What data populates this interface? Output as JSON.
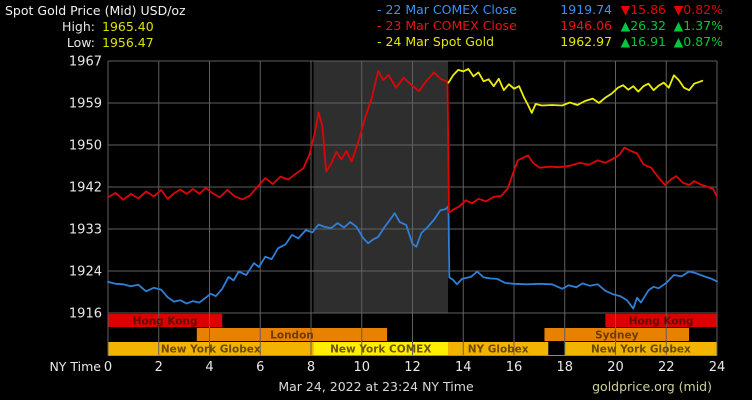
{
  "header": {
    "title": "Spot Gold Price (Mid) USD/oz",
    "high_label": "High:",
    "high_value": "1965.40",
    "low_label": "Low:",
    "low_value": "1956.47",
    "legend": [
      {
        "label": "- 22 Mar COMEX Close",
        "value": "1919.74",
        "change": "▼15.86",
        "change_pct": "▼0.82%",
        "label_color": "#3b92ee",
        "change_color": "#e60000"
      },
      {
        "label": "- 23 Mar COMEX Close",
        "value": "1946.06",
        "change": "▲26.32",
        "change_pct": "▲1.37%",
        "label_color": "#e81414",
        "change_color": "#00c83c"
      },
      {
        "label": "- 24 Mar Spot Gold",
        "value": "1962.97",
        "change": "▲16.91",
        "change_pct": "▲0.87%",
        "label_color": "#e6e600",
        "change_color": "#00c83c"
      }
    ]
  },
  "footer": {
    "timestamp": "Mar 24, 2022 at 23:24 NY Time",
    "source": "goldprice.org (mid)"
  },
  "colors": {
    "background": "#000000",
    "grid": "#616161",
    "axis_line": "#8a8a8a",
    "band": "#2e2e2e",
    "axis_text": "#e8e8e8",
    "up": "#00c83c",
    "down": "#e60000"
  },
  "chart_data": {
    "type": "line",
    "title": "Spot Gold Price (Mid) USD/oz",
    "x_label": "NY Time",
    "xlim": [
      0,
      24
    ],
    "x_ticks": [
      0,
      2,
      4,
      6,
      8,
      10,
      12,
      14,
      16,
      18,
      20,
      22,
      24
    ],
    "ylim": [
      1916,
      1967
    ],
    "y_ticks": [
      {
        "value": 1967,
        "label": "1967"
      },
      {
        "value": 1958.5,
        "label": "1959"
      },
      {
        "value": 1950,
        "label": "1950"
      },
      {
        "value": 1941.5,
        "label": "1942"
      },
      {
        "value": 1933,
        "label": "1933"
      },
      {
        "value": 1924.5,
        "label": "1924"
      },
      {
        "value": 1916,
        "label": "1916"
      }
    ],
    "grid": true,
    "legend_position": "top-right",
    "shaded_region": {
      "x0": 8.1,
      "x1": 13.4,
      "color": "#2e2e2e",
      "meaning": "New York COMEX session"
    },
    "series": [
      {
        "name": "22 Mar COMEX Close",
        "color": "#2e7fd6",
        "points": [
          [
            0,
            1922.3
          ],
          [
            0.3,
            1921.9
          ],
          [
            0.6,
            1921.8
          ],
          [
            0.9,
            1921.4
          ],
          [
            1.2,
            1921.7
          ],
          [
            1.5,
            1920.4
          ],
          [
            1.8,
            1921.1
          ],
          [
            2.1,
            1920.7
          ],
          [
            2.35,
            1919.2
          ],
          [
            2.6,
            1918.3
          ],
          [
            2.85,
            1918.6
          ],
          [
            3.1,
            1917.9
          ],
          [
            3.35,
            1918.4
          ],
          [
            3.6,
            1918.1
          ],
          [
            3.85,
            1919.1
          ],
          [
            4.05,
            1919.9
          ],
          [
            4.25,
            1919.4
          ],
          [
            4.5,
            1920.9
          ],
          [
            4.75,
            1923.3
          ],
          [
            4.95,
            1922.6
          ],
          [
            5.15,
            1924.4
          ],
          [
            5.45,
            1923.7
          ],
          [
            5.75,
            1926.1
          ],
          [
            5.95,
            1925.3
          ],
          [
            6.2,
            1927.4
          ],
          [
            6.45,
            1926.9
          ],
          [
            6.7,
            1929.1
          ],
          [
            7.0,
            1929.9
          ],
          [
            7.25,
            1931.8
          ],
          [
            7.5,
            1931.1
          ],
          [
            7.8,
            1932.8
          ],
          [
            8.05,
            1932.3
          ],
          [
            8.3,
            1933.9
          ],
          [
            8.55,
            1933.4
          ],
          [
            8.8,
            1933.2
          ],
          [
            9.05,
            1934.2
          ],
          [
            9.3,
            1933.3
          ],
          [
            9.55,
            1934.4
          ],
          [
            9.8,
            1933.4
          ],
          [
            10.05,
            1931.2
          ],
          [
            10.25,
            1930.1
          ],
          [
            10.45,
            1930.9
          ],
          [
            10.65,
            1931.4
          ],
          [
            10.9,
            1933.4
          ],
          [
            11.1,
            1934.8
          ],
          [
            11.3,
            1936.2
          ],
          [
            11.5,
            1934.4
          ],
          [
            11.75,
            1933.8
          ],
          [
            12.0,
            1930.0
          ],
          [
            12.15,
            1929.4
          ],
          [
            12.35,
            1932.2
          ],
          [
            12.6,
            1933.4
          ],
          [
            12.85,
            1934.9
          ],
          [
            13.1,
            1936.8
          ],
          [
            13.3,
            1937.0
          ],
          [
            13.42,
            1937.6
          ],
          [
            13.45,
            1923.2
          ],
          [
            13.6,
            1922.7
          ],
          [
            13.75,
            1921.8
          ],
          [
            13.95,
            1922.9
          ],
          [
            14.3,
            1923.3
          ],
          [
            14.55,
            1924.4
          ],
          [
            14.8,
            1923.2
          ],
          [
            15.05,
            1923.0
          ],
          [
            15.35,
            1922.9
          ],
          [
            15.65,
            1922.1
          ],
          [
            16.0,
            1921.9
          ],
          [
            16.5,
            1921.8
          ],
          [
            17.0,
            1921.9
          ],
          [
            17.5,
            1921.8
          ],
          [
            17.9,
            1920.9
          ],
          [
            18.15,
            1921.6
          ],
          [
            18.45,
            1921.2
          ],
          [
            18.7,
            1922.0
          ],
          [
            19.0,
            1921.5
          ],
          [
            19.3,
            1921.8
          ],
          [
            19.6,
            1920.5
          ],
          [
            19.9,
            1919.8
          ],
          [
            20.2,
            1919.4
          ],
          [
            20.45,
            1918.6
          ],
          [
            20.7,
            1916.9
          ],
          [
            20.85,
            1919.1
          ],
          [
            21.0,
            1918.1
          ],
          [
            21.3,
            1920.6
          ],
          [
            21.5,
            1921.3
          ],
          [
            21.7,
            1921.0
          ],
          [
            22.0,
            1922.1
          ],
          [
            22.3,
            1923.7
          ],
          [
            22.6,
            1923.4
          ],
          [
            22.9,
            1924.4
          ],
          [
            23.15,
            1924.1
          ],
          [
            23.5,
            1923.4
          ],
          [
            23.8,
            1922.9
          ],
          [
            24,
            1922.4
          ]
        ]
      },
      {
        "name": "23 Mar COMEX Close",
        "color": "#dc0606",
        "points": [
          [
            0,
            1939.4
          ],
          [
            0.3,
            1940.3
          ],
          [
            0.6,
            1938.9
          ],
          [
            0.9,
            1940.1
          ],
          [
            1.2,
            1939.2
          ],
          [
            1.5,
            1940.6
          ],
          [
            1.8,
            1939.6
          ],
          [
            2.1,
            1940.9
          ],
          [
            2.35,
            1939.1
          ],
          [
            2.6,
            1940.2
          ],
          [
            2.85,
            1941.0
          ],
          [
            3.1,
            1940.1
          ],
          [
            3.35,
            1941.1
          ],
          [
            3.6,
            1940.1
          ],
          [
            3.85,
            1941.3
          ],
          [
            4.1,
            1940.3
          ],
          [
            4.4,
            1939.4
          ],
          [
            4.7,
            1940.9
          ],
          [
            5.0,
            1939.6
          ],
          [
            5.3,
            1939.0
          ],
          [
            5.6,
            1939.8
          ],
          [
            5.9,
            1941.6
          ],
          [
            6.2,
            1943.3
          ],
          [
            6.5,
            1942.1
          ],
          [
            6.8,
            1943.6
          ],
          [
            7.1,
            1943.0
          ],
          [
            7.4,
            1944.2
          ],
          [
            7.7,
            1945.3
          ],
          [
            7.95,
            1948.2
          ],
          [
            8.15,
            1952.5
          ],
          [
            8.3,
            1956.6
          ],
          [
            8.45,
            1953.8
          ],
          [
            8.6,
            1944.6
          ],
          [
            8.8,
            1946.3
          ],
          [
            9.0,
            1948.6
          ],
          [
            9.2,
            1947.1
          ],
          [
            9.4,
            1948.8
          ],
          [
            9.6,
            1946.6
          ],
          [
            9.9,
            1951.2
          ],
          [
            10.15,
            1955.8
          ],
          [
            10.4,
            1959.6
          ],
          [
            10.65,
            1965.0
          ],
          [
            10.85,
            1963.1
          ],
          [
            11.05,
            1964.2
          ],
          [
            11.35,
            1961.6
          ],
          [
            11.65,
            1963.6
          ],
          [
            11.95,
            1962.2
          ],
          [
            12.25,
            1960.9
          ],
          [
            12.55,
            1963.0
          ],
          [
            12.85,
            1964.7
          ],
          [
            13.1,
            1963.4
          ],
          [
            13.38,
            1962.8
          ],
          [
            13.44,
            1936.3
          ],
          [
            13.6,
            1936.9
          ],
          [
            13.85,
            1937.6
          ],
          [
            14.1,
            1938.8
          ],
          [
            14.35,
            1938.2
          ],
          [
            14.6,
            1939.1
          ],
          [
            14.9,
            1938.6
          ],
          [
            15.2,
            1939.5
          ],
          [
            15.5,
            1939.7
          ],
          [
            15.75,
            1941.2
          ],
          [
            15.95,
            1944.1
          ],
          [
            16.15,
            1946.9
          ],
          [
            16.35,
            1947.4
          ],
          [
            16.55,
            1947.9
          ],
          [
            16.75,
            1946.4
          ],
          [
            17.0,
            1945.4
          ],
          [
            17.4,
            1945.6
          ],
          [
            17.8,
            1945.5
          ],
          [
            18.2,
            1945.8
          ],
          [
            18.6,
            1946.4
          ],
          [
            18.95,
            1946.0
          ],
          [
            19.3,
            1946.9
          ],
          [
            19.6,
            1946.4
          ],
          [
            19.9,
            1947.2
          ],
          [
            20.15,
            1948.0
          ],
          [
            20.35,
            1949.5
          ],
          [
            20.6,
            1948.8
          ],
          [
            20.85,
            1948.3
          ],
          [
            21.1,
            1946.1
          ],
          [
            21.4,
            1945.4
          ],
          [
            21.7,
            1943.4
          ],
          [
            21.95,
            1941.9
          ],
          [
            22.2,
            1943.1
          ],
          [
            22.4,
            1943.7
          ],
          [
            22.65,
            1942.4
          ],
          [
            22.9,
            1941.9
          ],
          [
            23.1,
            1942.7
          ],
          [
            23.35,
            1942.0
          ],
          [
            23.6,
            1941.6
          ],
          [
            23.85,
            1941.1
          ],
          [
            24,
            1939.5
          ]
        ]
      },
      {
        "name": "24 Mar Spot Gold",
        "color": "#eeee00",
        "points": [
          [
            13.42,
            1962.6
          ],
          [
            13.6,
            1964.1
          ],
          [
            13.8,
            1965.2
          ],
          [
            14.0,
            1964.9
          ],
          [
            14.2,
            1965.4
          ],
          [
            14.4,
            1963.9
          ],
          [
            14.6,
            1964.7
          ],
          [
            14.8,
            1962.9
          ],
          [
            15.0,
            1963.3
          ],
          [
            15.2,
            1961.9
          ],
          [
            15.4,
            1963.4
          ],
          [
            15.6,
            1961.1
          ],
          [
            15.8,
            1962.3
          ],
          [
            16.0,
            1961.4
          ],
          [
            16.2,
            1961.9
          ],
          [
            16.4,
            1959.6
          ],
          [
            16.55,
            1958.1
          ],
          [
            16.7,
            1956.5
          ],
          [
            16.85,
            1958.3
          ],
          [
            17.1,
            1958.0
          ],
          [
            17.5,
            1958.1
          ],
          [
            17.9,
            1958.0
          ],
          [
            18.2,
            1958.6
          ],
          [
            18.5,
            1958.1
          ],
          [
            18.8,
            1958.9
          ],
          [
            19.1,
            1959.4
          ],
          [
            19.35,
            1958.5
          ],
          [
            19.6,
            1959.6
          ],
          [
            19.85,
            1960.4
          ],
          [
            20.1,
            1961.6
          ],
          [
            20.3,
            1962.1
          ],
          [
            20.5,
            1961.2
          ],
          [
            20.7,
            1961.9
          ],
          [
            20.9,
            1960.8
          ],
          [
            21.1,
            1961.9
          ],
          [
            21.3,
            1962.4
          ],
          [
            21.5,
            1961.1
          ],
          [
            21.7,
            1962.0
          ],
          [
            21.9,
            1962.6
          ],
          [
            22.1,
            1961.6
          ],
          [
            22.3,
            1964.1
          ],
          [
            22.5,
            1963.1
          ],
          [
            22.7,
            1961.6
          ],
          [
            22.9,
            1961.1
          ],
          [
            23.1,
            1962.4
          ],
          [
            23.42,
            1963.0
          ]
        ]
      }
    ],
    "sessions": [
      {
        "row": 0,
        "label": "Hong Kong",
        "start": 0,
        "end": 4.5,
        "color": "#dc0000",
        "label_color": "#5f1000"
      },
      {
        "row": 0,
        "label": "Hong Kong",
        "start": 19.6,
        "end": 24,
        "color": "#dc0000",
        "label_color": "#5f1000"
      },
      {
        "row": 1,
        "label": "London",
        "start": 3.5,
        "end": 11.0,
        "color": "#e88000",
        "label_color": "#6e3c00"
      },
      {
        "row": 1,
        "label": "Sydney",
        "start": 17.2,
        "end": 22.9,
        "color": "#e88000",
        "label_color": "#6e3c00"
      },
      {
        "row": 2,
        "label": "New York Globex",
        "start": 0,
        "end": 8.1,
        "color": "#f2b400",
        "label_color": "#6e4a00"
      },
      {
        "row": 2,
        "label": "New York COMEX",
        "start": 8.1,
        "end": 13.4,
        "color": "#ffee00",
        "label_color": "#6e5600"
      },
      {
        "row": 2,
        "label": "NY Globex",
        "start": 13.4,
        "end": 17.35,
        "color": "#f2b400",
        "label_color": "#6e4a00"
      },
      {
        "row": 2,
        "label": "New York Globex",
        "start": 18.0,
        "end": 24,
        "color": "#f2b400",
        "label_color": "#6e4a00"
      }
    ]
  }
}
